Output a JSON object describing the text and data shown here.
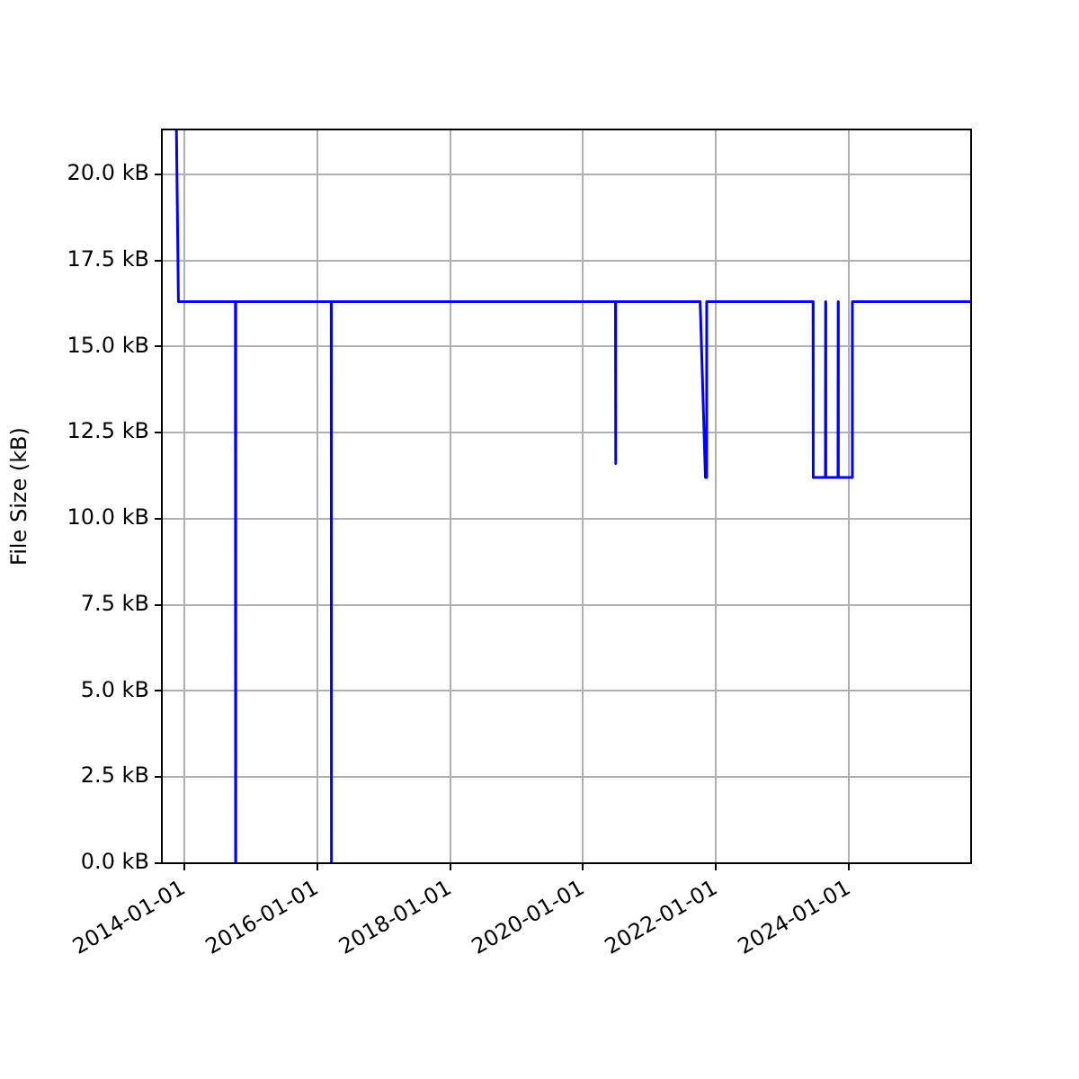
{
  "chart_data": {
    "type": "line",
    "ylabel": "File Size (kB)",
    "color": "#0000ff",
    "grid": true,
    "legend": false,
    "marker": "none",
    "line_style": "solid",
    "x": [
      "2013-11-20",
      "2013-12-01",
      "2014-10-10",
      "2014-10-11",
      "2014-10-12",
      "2016-03-19",
      "2016-03-20",
      "2016-03-21",
      "2020-06-27",
      "2020-06-28",
      "2020-06-29",
      "2021-10-05",
      "2021-11-03",
      "2021-11-10",
      "2023-06-17",
      "2023-06-18",
      "2023-08-24",
      "2023-08-25",
      "2023-08-26",
      "2023-11-01",
      "2023-11-02",
      "2023-11-03",
      "2024-01-18",
      "2024-01-19",
      "2025-11-01"
    ],
    "values": [
      21.3,
      16.3,
      16.3,
      0,
      16.3,
      16.3,
      0,
      16.3,
      16.3,
      11.6,
      16.3,
      16.3,
      11.2,
      16.3,
      16.3,
      11.2,
      11.2,
      16.3,
      11.2,
      11.2,
      16.3,
      11.2,
      11.2,
      16.3,
      16.3
    ],
    "xlim": [
      "2013-09-01",
      "2025-11-01"
    ],
    "xticks": [
      "2014-01-01",
      "2016-01-01",
      "2018-01-01",
      "2020-01-01",
      "2022-01-01",
      "2024-01-01"
    ],
    "ylim": [
      0,
      21.3
    ],
    "yticks": [
      {
        "value": 0,
        "label": "0.0 kB"
      },
      {
        "value": 2.5,
        "label": "2.5 kB"
      },
      {
        "value": 5,
        "label": "5.0 kB"
      },
      {
        "value": 7.5,
        "label": "7.5 kB"
      },
      {
        "value": 10,
        "label": "10.0 kB"
      },
      {
        "value": 12.5,
        "label": "12.5 kB"
      },
      {
        "value": 15,
        "label": "15.0 kB"
      },
      {
        "value": 17.5,
        "label": "17.5 kB"
      },
      {
        "value": 20,
        "label": "20.0 kB"
      }
    ]
  }
}
